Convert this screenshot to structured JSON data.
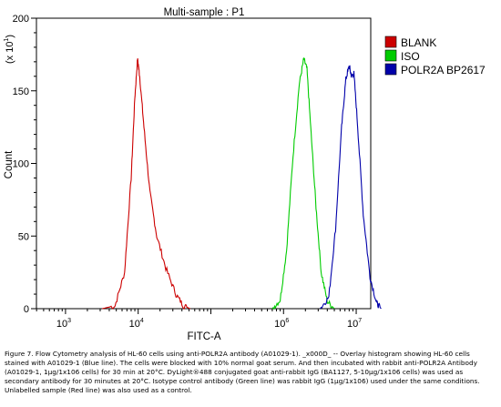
{
  "chart_data": {
    "type": "line",
    "title": "Multi-sample : P1",
    "xlabel": "FITC-A",
    "ylabel": "Count",
    "y_multiplier": "(x 10",
    "y_multiplier_exp": "1",
    "y_multiplier_close": ")",
    "x_scale": "log",
    "xlim_exp": [
      2.6,
      7.2
    ],
    "ylim": [
      0,
      200
    ],
    "x_ticks": [
      {
        "value": 1000,
        "base": "10",
        "exp": "3"
      },
      {
        "value": 10000,
        "base": "10",
        "exp": "4"
      },
      {
        "value": 1000000,
        "base": "10",
        "exp": "6"
      },
      {
        "value": 10000000,
        "base": "10",
        "exp": "7"
      }
    ],
    "y_ticks": [
      {
        "value": 0,
        "label": "0"
      },
      {
        "value": 50,
        "label": "50"
      },
      {
        "value": 100,
        "label": "100"
      },
      {
        "value": 150,
        "label": "150"
      },
      {
        "value": 200,
        "label": "200"
      }
    ],
    "grid": false,
    "legend_position": "right",
    "series": [
      {
        "name": "BLANK",
        "color": "#cc0000",
        "peak_x": 10000,
        "peak_y": 172,
        "x": [
          3200,
          4800,
          6500,
          8000,
          9000,
          9800,
          10500,
          12000,
          14500,
          18000,
          24000,
          33000,
          42000,
          52000
        ],
        "y": [
          0,
          2,
          25,
          90,
          145,
          172,
          160,
          125,
          80,
          50,
          28,
          10,
          2,
          0
        ]
      },
      {
        "name": "ISO",
        "color": "#00cc00",
        "peak_x": 2000000,
        "peak_y": 172,
        "x": [
          700000,
          900000,
          1100000,
          1350000,
          1650000,
          1900000,
          2100000,
          2400000,
          2800000,
          3300000,
          4000000,
          5000000
        ],
        "y": [
          0,
          6,
          40,
          105,
          155,
          172,
          165,
          120,
          70,
          25,
          5,
          0
        ]
      },
      {
        "name": "POLR2A BP2617",
        "color": "#0000aa",
        "peak_x": 8000000,
        "peak_y": 167,
        "x": [
          3200000,
          4200000,
          5200000,
          6300000,
          7200000,
          8000000,
          8600000,
          9300000,
          10500000,
          12500000,
          15500000,
          19000000,
          22000000
        ],
        "y": [
          0,
          8,
          55,
          125,
          158,
          167,
          160,
          162,
          125,
          65,
          22,
          4,
          0
        ]
      }
    ]
  },
  "caption": "Figure 7. Flow Cytometry analysis of HL-60 cells using anti-POLR2A antibody (A01029-1). _x000D_ -- Overlay histogram showing HL-60 cells stained with A01029-1 (Blue line). The cells were blocked with 10% normal goat serum. And then incubated with rabbit anti-POLR2A Antibody (A01029-1, 1µg/1x106 cells) for 30 min at 20°C. DyLight®488 conjugated goat anti-rabbit IgG (BA1127, 5-10µg/1x106 cells) was used as secondary antibody for 30 minutes at 20°C. Isotype control antibody (Green line) was rabbit IgG (1µg/1x106) used under the same conditions. Unlabelled sample (Red line) was also used as a control."
}
